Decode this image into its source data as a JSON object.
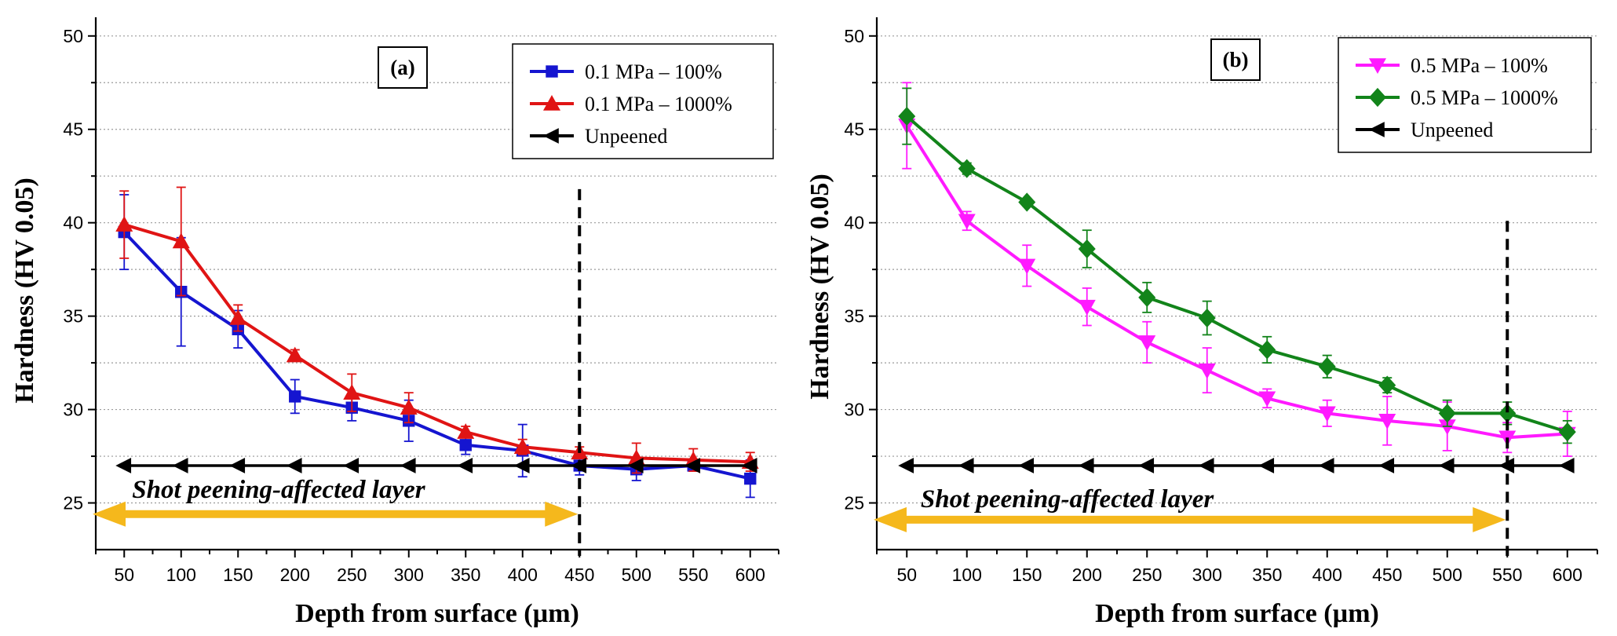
{
  "chart_data": [
    {
      "type": "line",
      "panel_label": "(a)",
      "xlabel": "Depth from surface (µm)",
      "ylabel": "Hardness (HV 0.05)",
      "xlim": [
        25,
        625
      ],
      "ylim": [
        22.5,
        51
      ],
      "yticks": [
        25,
        30,
        35,
        40,
        45,
        50
      ],
      "x": [
        50,
        100,
        150,
        200,
        250,
        300,
        350,
        400,
        450,
        500,
        550,
        600
      ],
      "grid": true,
      "legend_position": "top-right",
      "series": [
        {
          "name": "0.1 MPa – 100%",
          "color": "#1515d0",
          "marker": "square",
          "values": [
            39.5,
            36.3,
            34.3,
            30.7,
            30.1,
            29.4,
            28.1,
            27.8,
            27.0,
            26.8,
            27.0,
            26.3
          ],
          "errors": [
            2.0,
            2.9,
            1.0,
            0.9,
            0.7,
            1.1,
            0.5,
            1.4,
            0.5,
            0.6,
            0.3,
            1.0
          ]
        },
        {
          "name": "0.1 MPa – 1000%",
          "color": "#e01414",
          "marker": "triangle-up",
          "values": [
            39.9,
            39.0,
            34.9,
            32.9,
            30.9,
            30.1,
            28.8,
            28.0,
            27.7,
            27.4,
            27.3,
            27.2
          ],
          "errors": [
            1.8,
            2.9,
            0.7,
            0.3,
            1.0,
            0.8,
            0.3,
            0.4,
            0.3,
            0.8,
            0.6,
            0.5
          ]
        },
        {
          "name": "Unpeened",
          "color": "#000000",
          "marker": "triangle-left",
          "values": [
            27,
            27,
            27,
            27,
            27,
            27,
            27,
            27,
            27,
            27,
            27,
            27
          ],
          "errors": [
            0,
            0,
            0,
            0,
            0,
            0,
            0,
            0,
            0,
            0,
            0,
            0
          ]
        }
      ],
      "vline_x": 450,
      "arrow": {
        "from": 25,
        "to": 450,
        "y": 24.4,
        "color": "#f5b81c"
      },
      "annotation": {
        "text": "Shot peening-affected layer",
        "x": 50,
        "y": 25.7
      }
    },
    {
      "type": "line",
      "panel_label": "(b)",
      "xlabel": "Depth from surface (µm)",
      "ylabel": "Hardness (HV 0.05)",
      "xlim": [
        25,
        625
      ],
      "ylim": [
        22.5,
        51
      ],
      "yticks": [
        25,
        30,
        35,
        40,
        45,
        50
      ],
      "x": [
        50,
        100,
        150,
        200,
        250,
        300,
        350,
        400,
        450,
        500,
        550,
        600
      ],
      "grid": true,
      "legend_position": "top-right",
      "series": [
        {
          "name": "0.5 MPa – 100%",
          "color": "#ff1aff",
          "marker": "triangle-down",
          "values": [
            45.2,
            40.1,
            37.7,
            35.5,
            33.6,
            32.1,
            30.6,
            29.8,
            29.4,
            29.1,
            28.5,
            28.7
          ],
          "errors": [
            2.3,
            0.5,
            1.1,
            1.0,
            1.1,
            1.2,
            0.5,
            0.7,
            1.3,
            1.3,
            0.8,
            1.2
          ]
        },
        {
          "name": "0.5 MPa – 1000%",
          "color": "#12841a",
          "marker": "diamond",
          "values": [
            45.7,
            42.9,
            41.1,
            38.6,
            36.0,
            34.9,
            33.2,
            32.3,
            31.3,
            29.8,
            29.8,
            28.8
          ],
          "errors": [
            1.5,
            0.3,
            0.2,
            1.0,
            0.8,
            0.9,
            0.7,
            0.6,
            0.4,
            0.7,
            0.6,
            0.6
          ]
        },
        {
          "name": "Unpeened",
          "color": "#000000",
          "marker": "triangle-left",
          "values": [
            27,
            27,
            27,
            27,
            27,
            27,
            27,
            27,
            27,
            27,
            27,
            27
          ],
          "errors": [
            0,
            0,
            0,
            0,
            0,
            0,
            0,
            0,
            0,
            0,
            0,
            0
          ]
        }
      ],
      "vline_x": 550,
      "arrow": {
        "from": 25,
        "to": 550,
        "y": 24.1,
        "color": "#f5b81c"
      },
      "annotation": {
        "text": "Shot peening-affected layer",
        "x": 55,
        "y": 25.2
      }
    }
  ]
}
